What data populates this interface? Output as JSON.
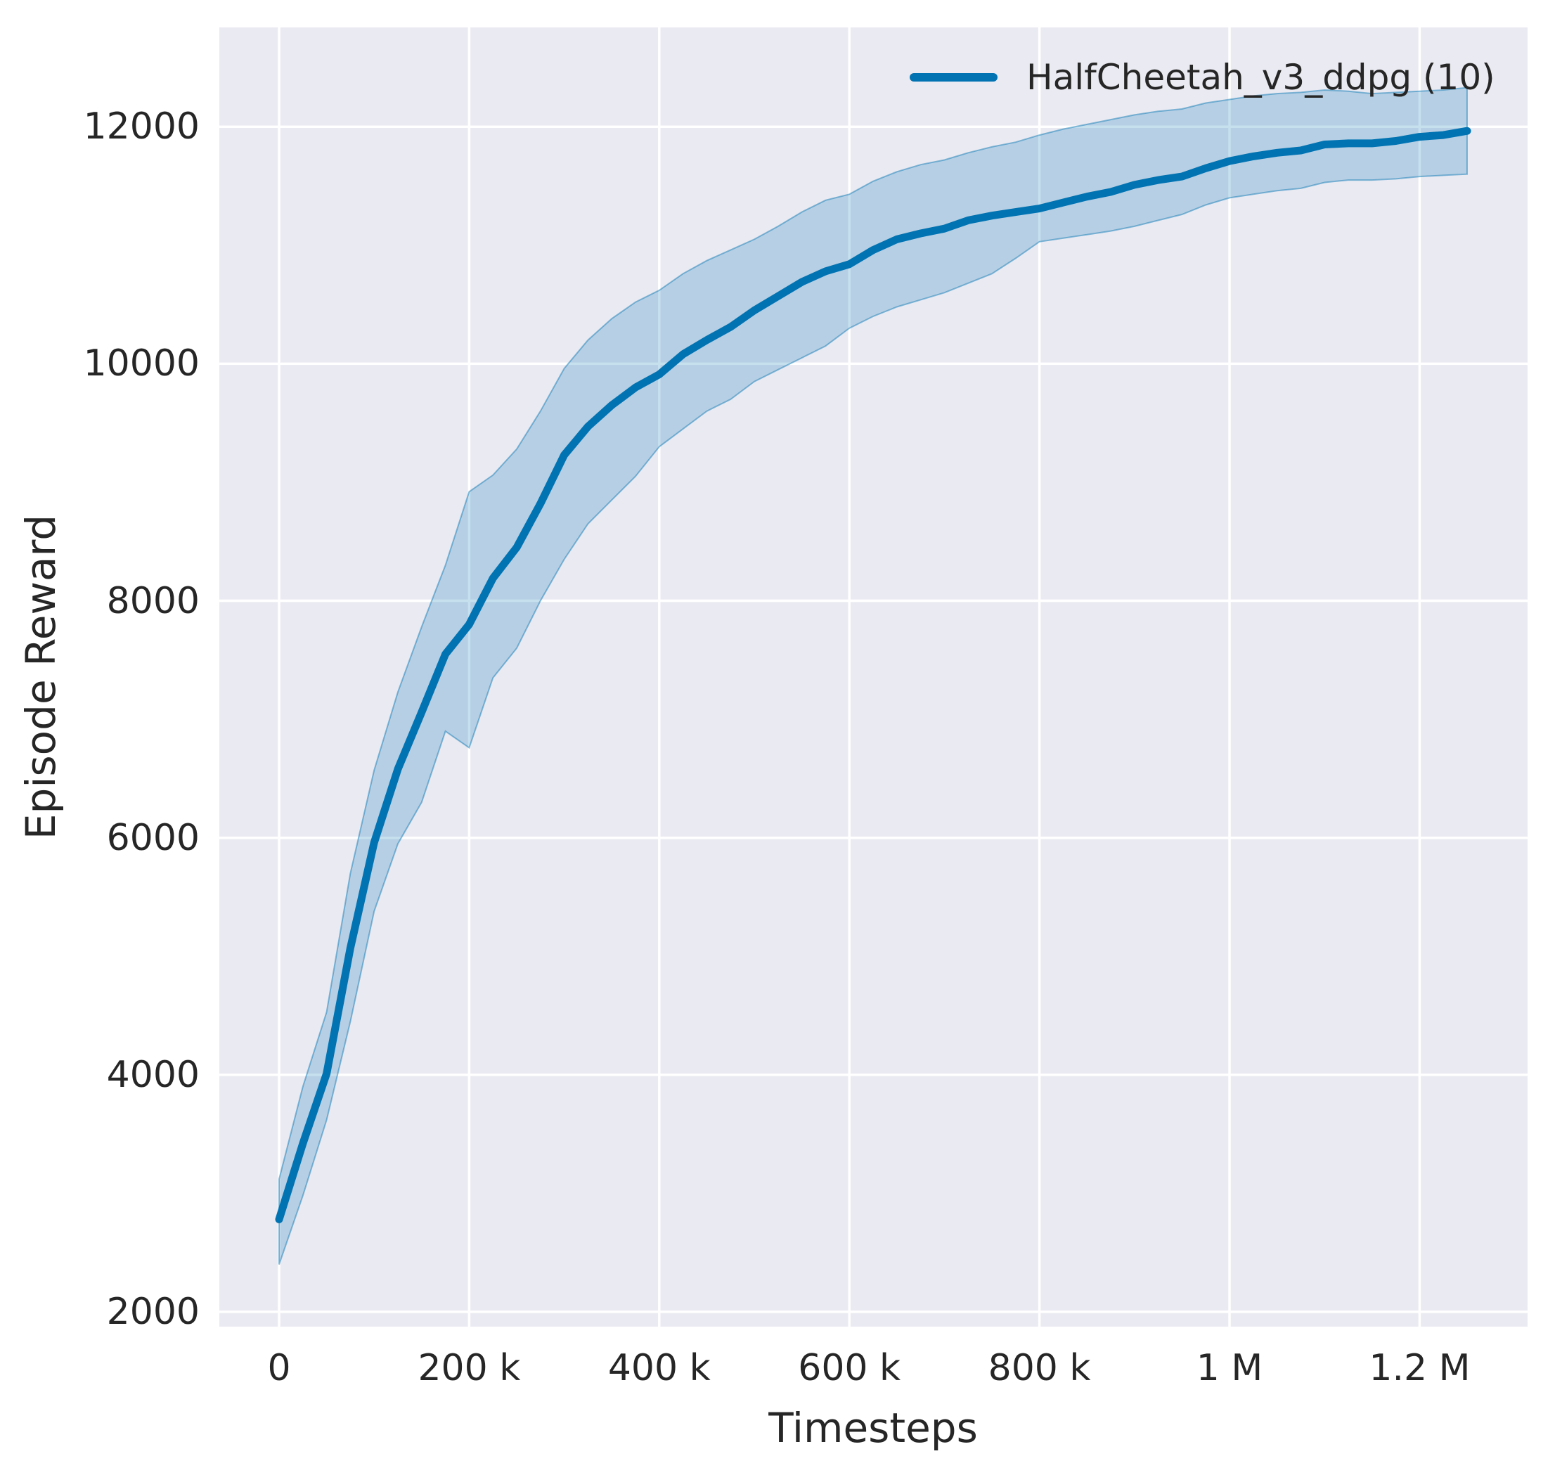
{
  "figure": {
    "background": "#ffffff",
    "axes_background": "#eaeaf2",
    "grid_color": "#ffffff",
    "text_color": "#262626",
    "line_color": "#0173b2",
    "band_fill": "rgba(1,115,178,0.22)",
    "band_edge": "rgba(1,115,178,0.45)"
  },
  "legend": {
    "label": "HalfCheetah_v3_ddpg (10)"
  },
  "axes": {
    "xlabel": "Timesteps",
    "ylabel": "Episode Reward",
    "xticks": [
      {
        "value": 0,
        "label": "0"
      },
      {
        "value": 200000,
        "label": "200 k"
      },
      {
        "value": 400000,
        "label": "400 k"
      },
      {
        "value": 600000,
        "label": "600 k"
      },
      {
        "value": 800000,
        "label": "800 k"
      },
      {
        "value": 1000000,
        "label": "1 M"
      },
      {
        "value": 1200000,
        "label": "1.2 M"
      }
    ],
    "yticks": [
      {
        "value": 2000,
        "label": "2000"
      },
      {
        "value": 4000,
        "label": "4000"
      },
      {
        "value": 6000,
        "label": "6000"
      },
      {
        "value": 8000,
        "label": "8000"
      },
      {
        "value": 10000,
        "label": "10000"
      },
      {
        "value": 12000,
        "label": "12000"
      }
    ]
  },
  "chart_data": {
    "type": "line",
    "title": "",
    "xlabel": "Timesteps",
    "ylabel": "Episode Reward",
    "xlim": [
      -62870,
      1313600
    ],
    "ylim": [
      1875,
      12838
    ],
    "grid": true,
    "legend_position": "upper right",
    "series": [
      {
        "name": "HalfCheetah_v3_ddpg (10)",
        "x": [
          0,
          25000,
          50000,
          75000,
          100000,
          125000,
          150000,
          175000,
          200000,
          225000,
          250000,
          275000,
          300000,
          325000,
          350000,
          375000,
          400000,
          425000,
          450000,
          475000,
          500000,
          525000,
          550000,
          575000,
          600000,
          625000,
          650000,
          675000,
          700000,
          725000,
          750000,
          775000,
          800000,
          825000,
          850000,
          875000,
          900000,
          925000,
          950000,
          975000,
          1000000,
          1025000,
          1050000,
          1075000,
          1100000,
          1125000,
          1150000,
          1175000,
          1200000,
          1225000,
          1250000
        ],
        "mean": [
          2780,
          3420,
          4010,
          5070,
          5960,
          6580,
          7060,
          7550,
          7800,
          8190,
          8450,
          8820,
          9230,
          9470,
          9650,
          9800,
          9910,
          10080,
          10200,
          10310,
          10450,
          10570,
          10690,
          10780,
          10840,
          10960,
          11050,
          11100,
          11140,
          11210,
          11250,
          11280,
          11310,
          11360,
          11410,
          11450,
          11510,
          11550,
          11580,
          11650,
          11710,
          11750,
          11780,
          11800,
          11850,
          11860,
          11860,
          11880,
          11915,
          11930,
          11965
        ],
        "lower": [
          2400,
          2980,
          3620,
          4450,
          5380,
          5950,
          6300,
          6900,
          6760,
          7350,
          7600,
          8000,
          8350,
          8650,
          8850,
          9050,
          9300,
          9450,
          9600,
          9700,
          9850,
          9950,
          10050,
          10150,
          10300,
          10400,
          10480,
          10540,
          10600,
          10680,
          10760,
          10890,
          11030,
          11060,
          11090,
          11120,
          11160,
          11210,
          11260,
          11340,
          11400,
          11430,
          11460,
          11480,
          11530,
          11550,
          11550,
          11560,
          11580,
          11590,
          11600
        ],
        "upper": [
          3120,
          3900,
          4530,
          5700,
          6570,
          7230,
          7780,
          8300,
          8920,
          9060,
          9280,
          9600,
          9960,
          10200,
          10380,
          10520,
          10620,
          10760,
          10870,
          10960,
          11050,
          11160,
          11280,
          11380,
          11430,
          11540,
          11620,
          11680,
          11720,
          11780,
          11830,
          11870,
          11930,
          11980,
          12020,
          12060,
          12100,
          12130,
          12150,
          12200,
          12230,
          12260,
          12280,
          12290,
          12310,
          12300,
          12280,
          12290,
          12300,
          12310,
          12330
        ]
      }
    ]
  }
}
